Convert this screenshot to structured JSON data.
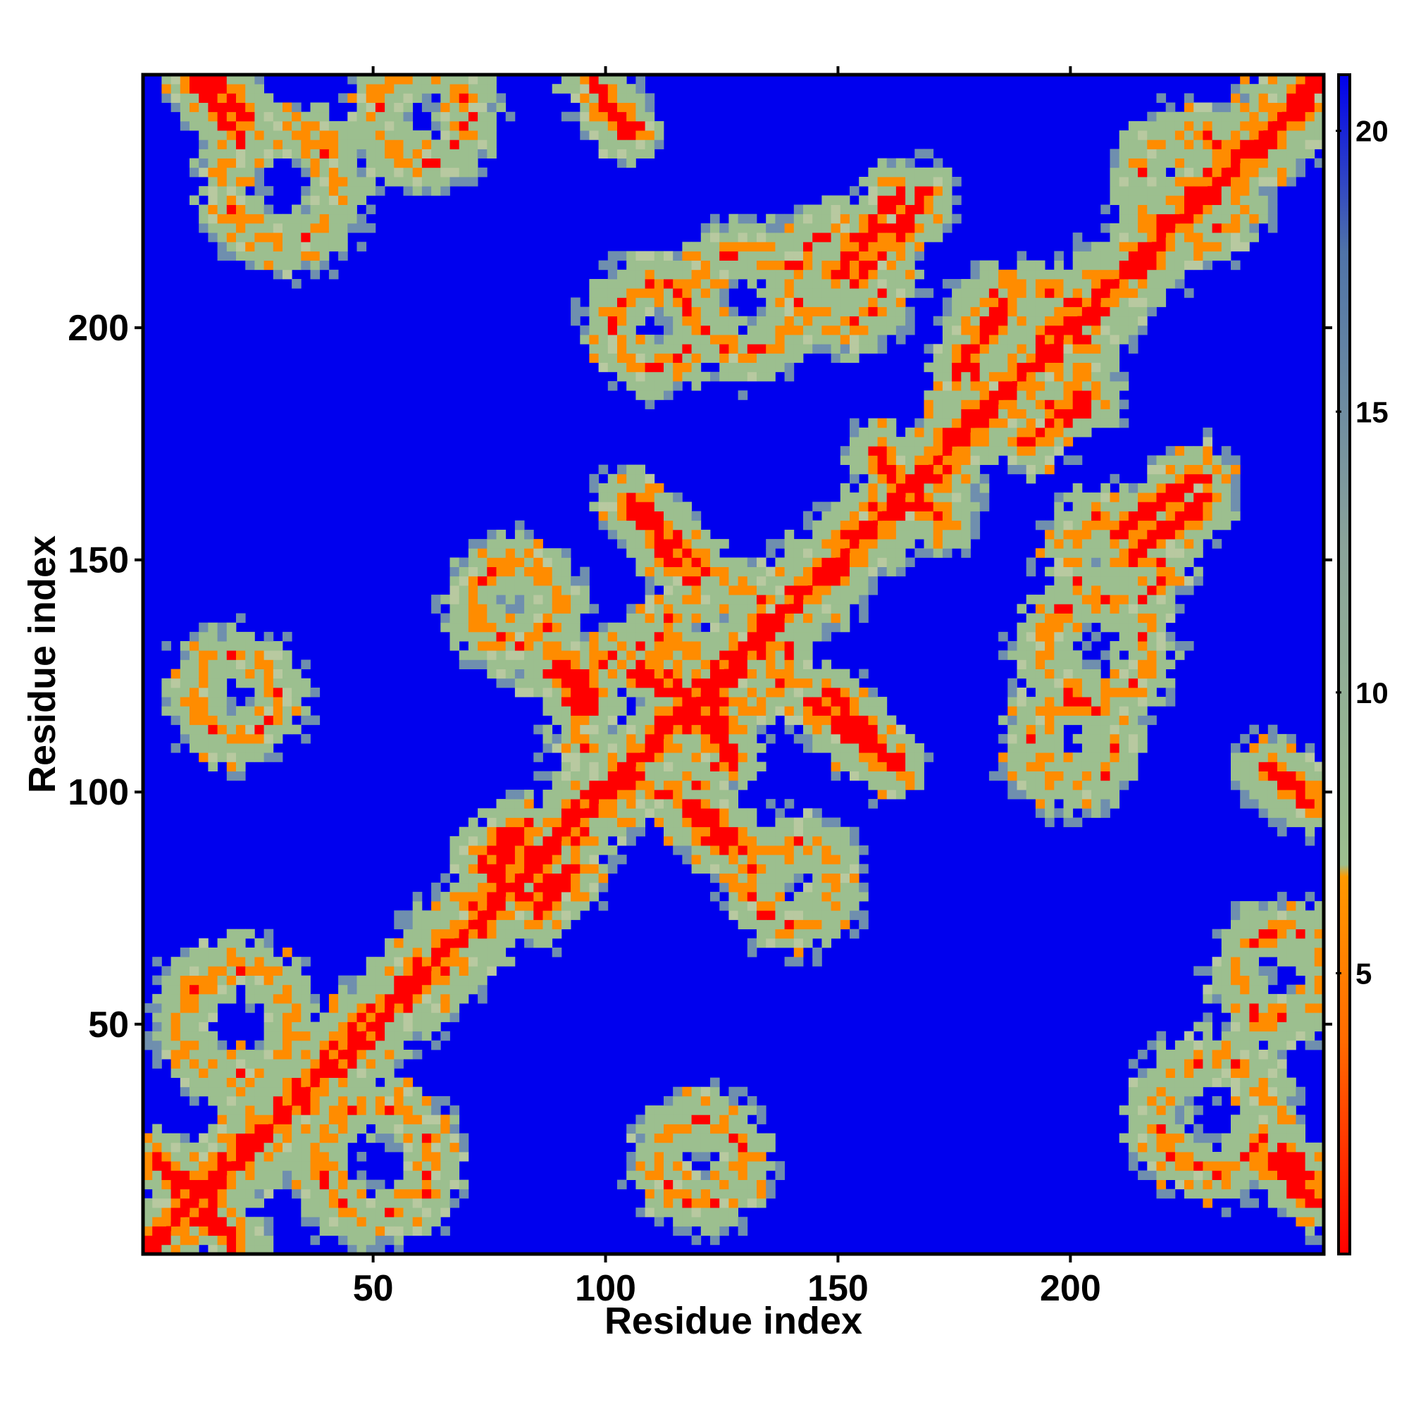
{
  "chart_data": {
    "type": "heatmap",
    "title": "",
    "xlabel": "Residue index",
    "ylabel": "Residue index",
    "n_residues": 254,
    "xlim": [
      1,
      254
    ],
    "ylim": [
      1,
      254
    ],
    "x_ticks": [
      50,
      100,
      150,
      200
    ],
    "y_ticks": [
      50,
      100,
      150,
      200
    ],
    "colorbar": {
      "ticks": [
        5,
        10,
        15,
        20
      ],
      "range": [
        0,
        21
      ],
      "colors": [
        "#ff0000",
        "#ff8c00",
        "#9cbf8f",
        "#5a80a8",
        "#0000ee"
      ]
    },
    "colors": {
      "background": "#0000ee",
      "far": "#0000ee",
      "mid": "#9cbf8f",
      "near": "#ff8c00",
      "contact": "#ff0000"
    },
    "structure_note": "Symmetric residue-residue distance map; diagonal red band; antiparallel contact stripes near residue pairs",
    "contact_stripes": [
      {
        "i0": 3,
        "j0": 20,
        "i1": 20,
        "j1": 3
      },
      {
        "i0": 15,
        "j0": 252,
        "i1": 22,
        "j1": 245
      },
      {
        "i0": 97,
        "j0": 252,
        "i1": 104,
        "j1": 242
      },
      {
        "i0": 107,
        "j0": 160,
        "i1": 120,
        "j1": 148
      },
      {
        "i0": 88,
        "j0": 125,
        "i1": 96,
        "j1": 117
      },
      {
        "i0": 113,
        "j0": 125,
        "i1": 126,
        "j1": 107
      },
      {
        "i0": 120,
        "j0": 96,
        "i1": 128,
        "j1": 89
      },
      {
        "i0": 145,
        "j0": 118,
        "i1": 162,
        "j1": 105
      },
      {
        "i0": 73,
        "j0": 85,
        "i1": 82,
        "j1": 92
      },
      {
        "i0": 82,
        "j0": 76,
        "i1": 91,
        "j1": 82
      },
      {
        "i0": 150,
        "j0": 212,
        "i1": 162,
        "j1": 228
      },
      {
        "i0": 164,
        "j0": 165,
        "i1": 172,
        "j1": 158
      },
      {
        "i0": 242,
        "j0": 105,
        "i1": 252,
        "j1": 97
      },
      {
        "i0": 242,
        "j0": 20,
        "i1": 252,
        "j1": 12
      },
      {
        "i0": 190,
        "j0": 175,
        "i1": 204,
        "j1": 185
      },
      {
        "i0": 210,
        "j0": 155,
        "i1": 228,
        "j1": 168
      }
    ],
    "contact_blobs": [
      {
        "i": 20,
        "j": 50,
        "r": 22
      },
      {
        "i": 50,
        "j": 20,
        "r": 22
      },
      {
        "i": 110,
        "j": 115,
        "r": 30
      },
      {
        "i": 125,
        "j": 130,
        "r": 25
      },
      {
        "i": 190,
        "j": 195,
        "r": 24
      },
      {
        "i": 225,
        "j": 230,
        "r": 20
      },
      {
        "i": 130,
        "j": 205,
        "r": 20
      },
      {
        "i": 205,
        "j": 130,
        "r": 20
      },
      {
        "i": 210,
        "j": 150,
        "r": 18
      },
      {
        "i": 150,
        "j": 210,
        "r": 18
      },
      {
        "i": 230,
        "j": 30,
        "r": 22
      },
      {
        "i": 30,
        "j": 230,
        "r": 22
      },
      {
        "i": 120,
        "j": 20,
        "r": 16
      },
      {
        "i": 20,
        "j": 120,
        "r": 16
      },
      {
        "i": 245,
        "j": 60,
        "r": 18
      },
      {
        "i": 60,
        "j": 245,
        "r": 18
      },
      {
        "i": 140,
        "j": 80,
        "r": 16
      },
      {
        "i": 80,
        "j": 140,
        "r": 16
      },
      {
        "i": 200,
        "j": 110,
        "r": 16
      },
      {
        "i": 110,
        "j": 200,
        "r": 16
      }
    ]
  }
}
